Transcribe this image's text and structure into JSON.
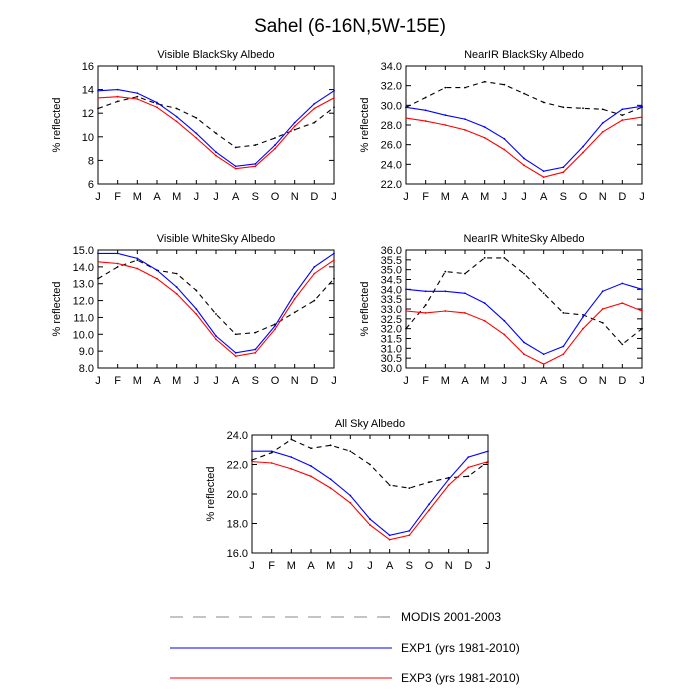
{
  "figure_title": "Sahel (6-16N,5W-15E)",
  "colors": {
    "modis": "#000000",
    "exp1": "#0000ff",
    "exp3": "#ff0000"
  },
  "legend": [
    {
      "key": "modis",
      "label": "MODIS 2001-2003",
      "style": "dashed"
    },
    {
      "key": "exp1",
      "label": "EXP1 (yrs 1981-2010)",
      "style": "solid"
    },
    {
      "key": "exp3",
      "label": "EXP3 (yrs 1981-2010)",
      "style": "solid"
    }
  ],
  "chart_data": [
    {
      "type": "line",
      "title": "Visible BlackSky Albedo",
      "ylabel": "% reflected",
      "x": [
        "J",
        "F",
        "M",
        "A",
        "M",
        "J",
        "J",
        "A",
        "S",
        "O",
        "N",
        "D",
        "J"
      ],
      "ylim": [
        6,
        16
      ],
      "yticks": [
        6,
        8,
        10,
        12,
        14,
        16
      ],
      "ytick_labels": [
        "6",
        "8",
        "10",
        "12",
        "14",
        "16"
      ],
      "series": [
        {
          "name": "MODIS 2001-2003",
          "key": "modis",
          "values": [
            12.4,
            13.0,
            13.4,
            12.8,
            12.4,
            11.6,
            10.3,
            9.1,
            9.3,
            9.9,
            10.6,
            11.2,
            12.5
          ]
        },
        {
          "name": "EXP1 (yrs 1981-2010)",
          "key": "exp1",
          "values": [
            13.9,
            14.0,
            13.7,
            12.9,
            11.7,
            10.3,
            8.7,
            7.5,
            7.7,
            9.3,
            11.2,
            12.8,
            13.9
          ]
        },
        {
          "name": "EXP3 (yrs 1981-2010)",
          "key": "exp3",
          "values": [
            13.3,
            13.4,
            13.2,
            12.5,
            11.3,
            9.9,
            8.4,
            7.3,
            7.5,
            9.0,
            10.9,
            12.4,
            13.3
          ]
        }
      ]
    },
    {
      "type": "line",
      "title": "NearIR BlackSky Albedo",
      "ylabel": "% reflected",
      "x": [
        "J",
        "F",
        "M",
        "A",
        "M",
        "J",
        "J",
        "A",
        "S",
        "O",
        "N",
        "D",
        "J"
      ],
      "ylim": [
        22,
        34
      ],
      "yticks": [
        22,
        24,
        26,
        28,
        30,
        32,
        34
      ],
      "ytick_labels": [
        "22.0",
        "24.0",
        "26.0",
        "28.0",
        "30.0",
        "32.0",
        "34.0"
      ],
      "series": [
        {
          "name": "MODIS 2001-2003",
          "key": "modis",
          "values": [
            29.8,
            30.8,
            31.8,
            31.8,
            32.4,
            32.1,
            31.2,
            30.3,
            29.8,
            29.7,
            29.6,
            29.0,
            29.8
          ]
        },
        {
          "name": "EXP1 (yrs 1981-2010)",
          "key": "exp1",
          "values": [
            29.8,
            29.5,
            29.0,
            28.6,
            27.8,
            26.6,
            24.6,
            23.3,
            23.7,
            25.8,
            28.2,
            29.6,
            29.9
          ]
        },
        {
          "name": "EXP3 (yrs 1981-2010)",
          "key": "exp3",
          "values": [
            28.7,
            28.4,
            28.0,
            27.5,
            26.7,
            25.5,
            23.9,
            22.7,
            23.2,
            25.2,
            27.3,
            28.5,
            28.8
          ]
        }
      ]
    },
    {
      "type": "line",
      "title": "Visible WhiteSky Albedo",
      "ylabel": "% reflected",
      "x": [
        "J",
        "F",
        "M",
        "A",
        "M",
        "J",
        "J",
        "A",
        "S",
        "O",
        "N",
        "D",
        "J"
      ],
      "ylim": [
        8,
        15
      ],
      "yticks": [
        8,
        9,
        10,
        11,
        12,
        13,
        14,
        15
      ],
      "ytick_labels": [
        "8.0",
        "9.0",
        "10.0",
        "11.0",
        "12.0",
        "13.0",
        "14.0",
        "15.0"
      ],
      "series": [
        {
          "name": "MODIS 2001-2003",
          "key": "modis",
          "values": [
            13.3,
            14.0,
            14.4,
            13.8,
            13.6,
            12.6,
            11.2,
            10.0,
            10.1,
            10.6,
            11.3,
            12.0,
            13.3
          ]
        },
        {
          "name": "EXP1 (yrs 1981-2010)",
          "key": "exp1",
          "values": [
            14.8,
            14.8,
            14.5,
            13.8,
            12.8,
            11.5,
            9.9,
            8.9,
            9.1,
            10.5,
            12.4,
            14.0,
            14.8
          ]
        },
        {
          "name": "EXP3 (yrs 1981-2010)",
          "key": "exp3",
          "values": [
            14.3,
            14.2,
            13.9,
            13.3,
            12.4,
            11.2,
            9.7,
            8.7,
            8.9,
            10.3,
            12.1,
            13.6,
            14.4
          ]
        }
      ]
    },
    {
      "type": "line",
      "title": "NearIR WhiteSky Albedo",
      "ylabel": "% reflected",
      "x": [
        "J",
        "F",
        "M",
        "A",
        "M",
        "J",
        "J",
        "A",
        "S",
        "O",
        "N",
        "D",
        "J"
      ],
      "ylim": [
        30,
        36
      ],
      "yticks": [
        30,
        30.5,
        31,
        31.5,
        32,
        32.5,
        33,
        33.5,
        34,
        34.5,
        35,
        35.5,
        36
      ],
      "ytick_labels": [
        "30.0",
        "30.5",
        "31.0",
        "31.5",
        "32.0",
        "32.5",
        "33.0",
        "33.5",
        "34.0",
        "34.5",
        "35.0",
        "35.5",
        "36.0"
      ],
      "series": [
        {
          "name": "MODIS 2001-2003",
          "key": "modis",
          "values": [
            32.0,
            33.2,
            34.9,
            34.8,
            35.6,
            35.6,
            34.8,
            33.8,
            32.8,
            32.7,
            32.3,
            31.2,
            32.0
          ]
        },
        {
          "name": "EXP1 (yrs 1981-2010)",
          "key": "exp1",
          "values": [
            34.0,
            33.9,
            33.9,
            33.8,
            33.3,
            32.4,
            31.3,
            30.7,
            31.1,
            32.6,
            33.9,
            34.3,
            34.0
          ]
        },
        {
          "name": "EXP3 (yrs 1981-2010)",
          "key": "exp3",
          "values": [
            32.9,
            32.8,
            32.9,
            32.8,
            32.4,
            31.7,
            30.7,
            30.2,
            30.7,
            32.0,
            33.0,
            33.3,
            32.9
          ]
        }
      ]
    },
    {
      "type": "line",
      "title": "All Sky Albedo",
      "ylabel": "% reflected",
      "x": [
        "J",
        "F",
        "M",
        "A",
        "M",
        "J",
        "J",
        "A",
        "S",
        "O",
        "N",
        "D",
        "J"
      ],
      "ylim": [
        16,
        24
      ],
      "yticks": [
        16,
        18,
        20,
        22,
        24
      ],
      "ytick_labels": [
        "16.0",
        "18.0",
        "20.0",
        "22.0",
        "24.0"
      ],
      "series": [
        {
          "name": "MODIS 2001-2003",
          "key": "modis",
          "values": [
            22.3,
            22.8,
            23.7,
            23.1,
            23.3,
            22.9,
            22.0,
            20.6,
            20.4,
            20.8,
            21.1,
            21.2,
            22.2
          ]
        },
        {
          "name": "EXP1 (yrs 1981-2010)",
          "key": "exp1",
          "values": [
            22.9,
            22.9,
            22.5,
            21.9,
            21.0,
            19.9,
            18.3,
            17.2,
            17.5,
            19.3,
            21.0,
            22.5,
            22.9
          ]
        },
        {
          "name": "EXP3 (yrs 1981-2010)",
          "key": "exp3",
          "values": [
            22.2,
            22.1,
            21.7,
            21.2,
            20.4,
            19.4,
            17.9,
            16.9,
            17.2,
            18.9,
            20.6,
            21.8,
            22.2
          ]
        }
      ]
    }
  ]
}
